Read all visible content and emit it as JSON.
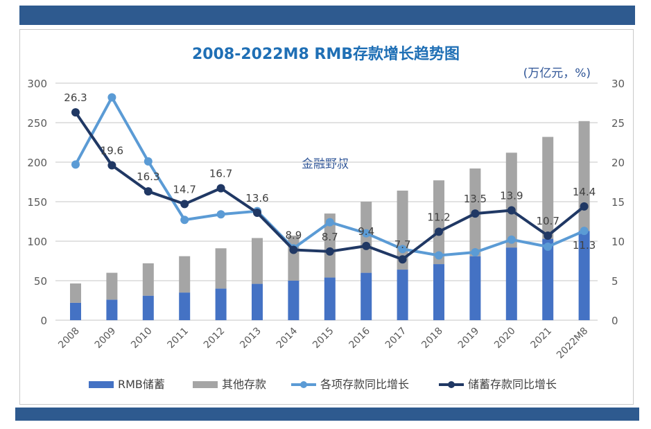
{
  "chart_data": {
    "type": "bar+line",
    "title": "2008-2022M8 RMB存款增长趋势图",
    "unit": "(万亿元，%)",
    "watermark": "金融野叔",
    "categories": [
      "2008",
      "2009",
      "2010",
      "2011",
      "2012",
      "2013",
      "2014",
      "2015",
      "2016",
      "2017",
      "2018",
      "2019",
      "2020",
      "2021",
      "2022M8"
    ],
    "ylim_left": [
      0,
      300
    ],
    "yticks_left": [
      0,
      50,
      100,
      150,
      200,
      250,
      300
    ],
    "ylim_right": [
      0,
      30
    ],
    "yticks_right": [
      0,
      5,
      10,
      15,
      20,
      25,
      30
    ],
    "grid": true,
    "legend": "bottom",
    "bars": [
      {
        "name": "RMB储蓄",
        "color": "#4472c4",
        "values": [
          22,
          26,
          31,
          35,
          40,
          46,
          50,
          54,
          60,
          64,
          71,
          81,
          92,
          103,
          113
        ]
      },
      {
        "name": "其他存款",
        "color": "#a5a5a5",
        "values": [
          24.5,
          34,
          41,
          46,
          51,
          58,
          57,
          81,
          90,
          100,
          106,
          111,
          120,
          129,
          139
        ]
      }
    ],
    "lines": [
      {
        "name": "各项存款同比增长",
        "color": "#5b9bd5",
        "axis": "right",
        "values": [
          19.7,
          28.2,
          20.1,
          12.7,
          13.4,
          13.8,
          9.1,
          12.4,
          11.0,
          9.0,
          8.2,
          8.6,
          10.2,
          9.3,
          11.3
        ],
        "labels": {
          "14": "11.3"
        }
      },
      {
        "name": "储蓄存款同比增长",
        "color": "#203864",
        "axis": "right",
        "values": [
          26.3,
          19.6,
          16.3,
          14.7,
          16.7,
          13.6,
          8.9,
          8.7,
          9.4,
          7.7,
          11.2,
          13.5,
          13.9,
          10.7,
          14.4
        ],
        "labels": [
          "26.3",
          "19.6",
          "16.3",
          "14.7",
          "16.7",
          "13.6",
          "8.9",
          "8.7",
          "9.4",
          "7.7",
          "11.2",
          "13.5",
          "13.9",
          "10.7",
          "14.4"
        ]
      }
    ]
  }
}
